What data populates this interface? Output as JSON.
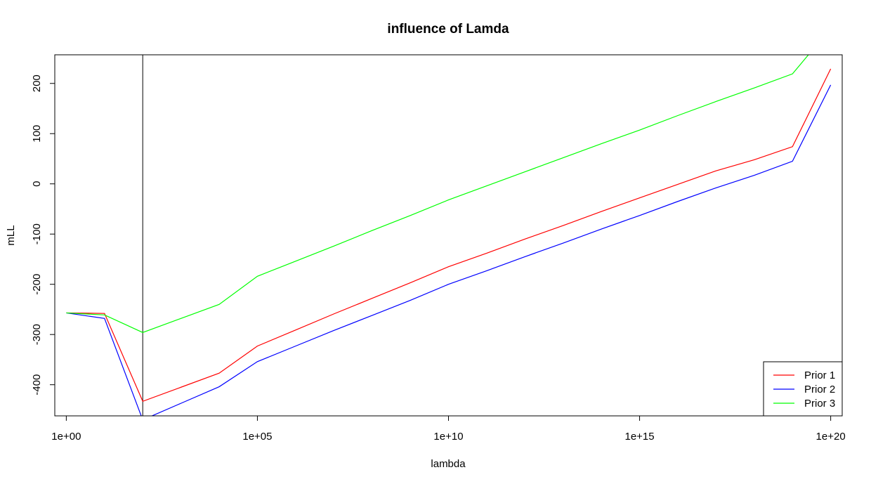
{
  "chart_data": {
    "type": "line",
    "title": "influence of Lamda",
    "xlabel": "lambda",
    "ylabel": "mLL",
    "x_scale": "log10",
    "x_values": [
      1,
      10,
      100,
      1000,
      10000,
      100000,
      1000000,
      10000000,
      100000000,
      1000000000,
      10000000000,
      100000000000,
      1000000000000,
      10000000000000,
      100000000000000,
      1000000000000000,
      10000000000000000,
      100000000000000000,
      1000000000000000000,
      10000000000000000000,
      100000000000000000000
    ],
    "x_ticks": [
      {
        "value": 1,
        "label": "1e+00"
      },
      {
        "value": 100000,
        "label": "1e+05"
      },
      {
        "value": 10000000000,
        "label": "1e+10"
      },
      {
        "value": 1000000000000000,
        "label": "1e+15"
      },
      {
        "value": 100000000000000000000,
        "label": "1e+20"
      }
    ],
    "y_ticks": [
      {
        "value": -400,
        "label": "-400"
      },
      {
        "value": -300,
        "label": "-300"
      },
      {
        "value": -200,
        "label": "-200"
      },
      {
        "value": -100,
        "label": "-100"
      },
      {
        "value": 0,
        "label": "0"
      },
      {
        "value": 100,
        "label": "100"
      },
      {
        "value": 200,
        "label": "200"
      }
    ],
    "xlim": [
      0.5,
      200000000000000000000
    ],
    "ylim": [
      -462,
      257
    ],
    "vline_x": 100,
    "series": [
      {
        "name": "Prior 1",
        "color": "#ff0000",
        "values": [
          -257,
          -258,
          -433,
          -405,
          -377,
          -323,
          -291,
          -259,
          -228,
          -197,
          -165,
          -138,
          -110,
          -83,
          -55,
          -28,
          -1,
          26,
          48,
          74,
          229
        ]
      },
      {
        "name": "Prior 2",
        "color": "#0000ff",
        "values": [
          -257,
          -268,
          -470,
          -437,
          -404,
          -354,
          -323,
          -292,
          -262,
          -232,
          -200,
          -173,
          -145,
          -118,
          -90,
          -63,
          -35,
          -8,
          17,
          45,
          197
        ]
      },
      {
        "name": "Prior 3",
        "color": "#00ff00",
        "values": [
          -257,
          -261,
          -296,
          -268,
          -240,
          -184,
          -154,
          -124,
          -93,
          -63,
          -32,
          -4,
          24,
          52,
          80,
          107,
          136,
          164,
          191,
          219,
          310
        ]
      }
    ],
    "legend_position": "bottom-right",
    "grid": false
  }
}
